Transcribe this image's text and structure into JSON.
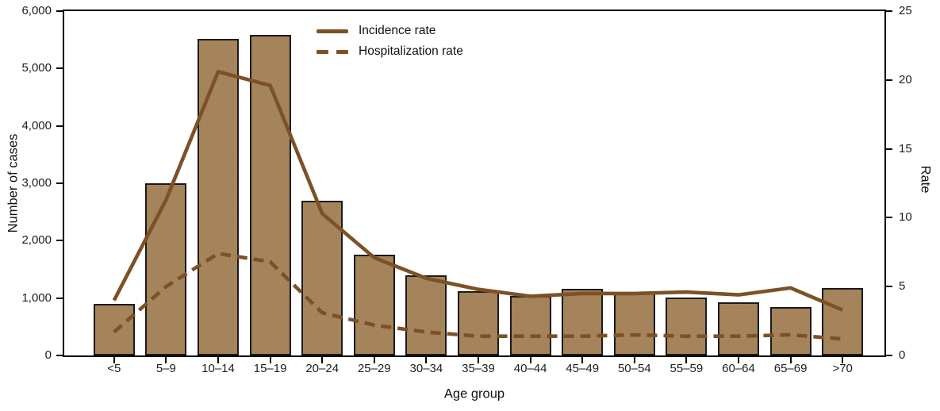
{
  "page": {
    "background": "#ffffff"
  },
  "legend": {
    "items": [
      {
        "label": "Incidence rate",
        "style": "solid"
      },
      {
        "label": "Hospitalization rate",
        "style": "dashed"
      }
    ]
  },
  "axes": {
    "left_label": "Number of cases",
    "right_label": "Rate",
    "x_label": "Age group"
  },
  "colors": {
    "bar_fill": "#a6845c",
    "bar_border": "#1a1a1a",
    "line": "#7d5126",
    "axis": "#000000",
    "text": "#1d1d1d"
  },
  "chart_data": {
    "type": "bar+line",
    "title": "",
    "categories": [
      "<5",
      "5–9",
      "10–14",
      "15–19",
      "20–24",
      "25–29",
      "30–34",
      "35–39",
      "40–44",
      "45–49",
      "50–54",
      "55–59",
      "60–64",
      "65–69",
      ">70"
    ],
    "series": [
      {
        "name": "Number of cases",
        "kind": "bar",
        "axis": "left",
        "values": [
          900,
          3000,
          5510,
          5580,
          2690,
          1750,
          1400,
          1120,
          1040,
          1160,
          1090,
          1010,
          930,
          840,
          1180
        ]
      },
      {
        "name": "Incidence rate",
        "kind": "line",
        "dash": "solid",
        "axis": "right",
        "values": [
          4.0,
          11.3,
          20.6,
          19.6,
          10.3,
          7.1,
          5.6,
          4.8,
          4.3,
          4.5,
          4.5,
          4.6,
          4.4,
          4.9,
          3.3
        ]
      },
      {
        "name": "Hospitalization rate",
        "kind": "line",
        "dash": "dashed",
        "axis": "right",
        "values": [
          1.7,
          5.0,
          7.4,
          6.8,
          3.1,
          2.2,
          1.7,
          1.4,
          1.4,
          1.4,
          1.5,
          1.4,
          1.4,
          1.5,
          1.2
        ]
      }
    ],
    "left_axis": {
      "label": "Number of cases",
      "min": 0,
      "max": 6000,
      "tick_labels": [
        "0",
        "1,000",
        "2,000",
        "3,000",
        "4,000",
        "5,000",
        "6,000"
      ]
    },
    "right_axis": {
      "label": "Rate",
      "min": 0,
      "max": 25,
      "tick_labels": [
        "0",
        "5",
        "10",
        "15",
        "20",
        "25"
      ]
    },
    "x_axis": {
      "label": "Age group"
    },
    "legend_position": "inside-top-center",
    "grid": false
  }
}
